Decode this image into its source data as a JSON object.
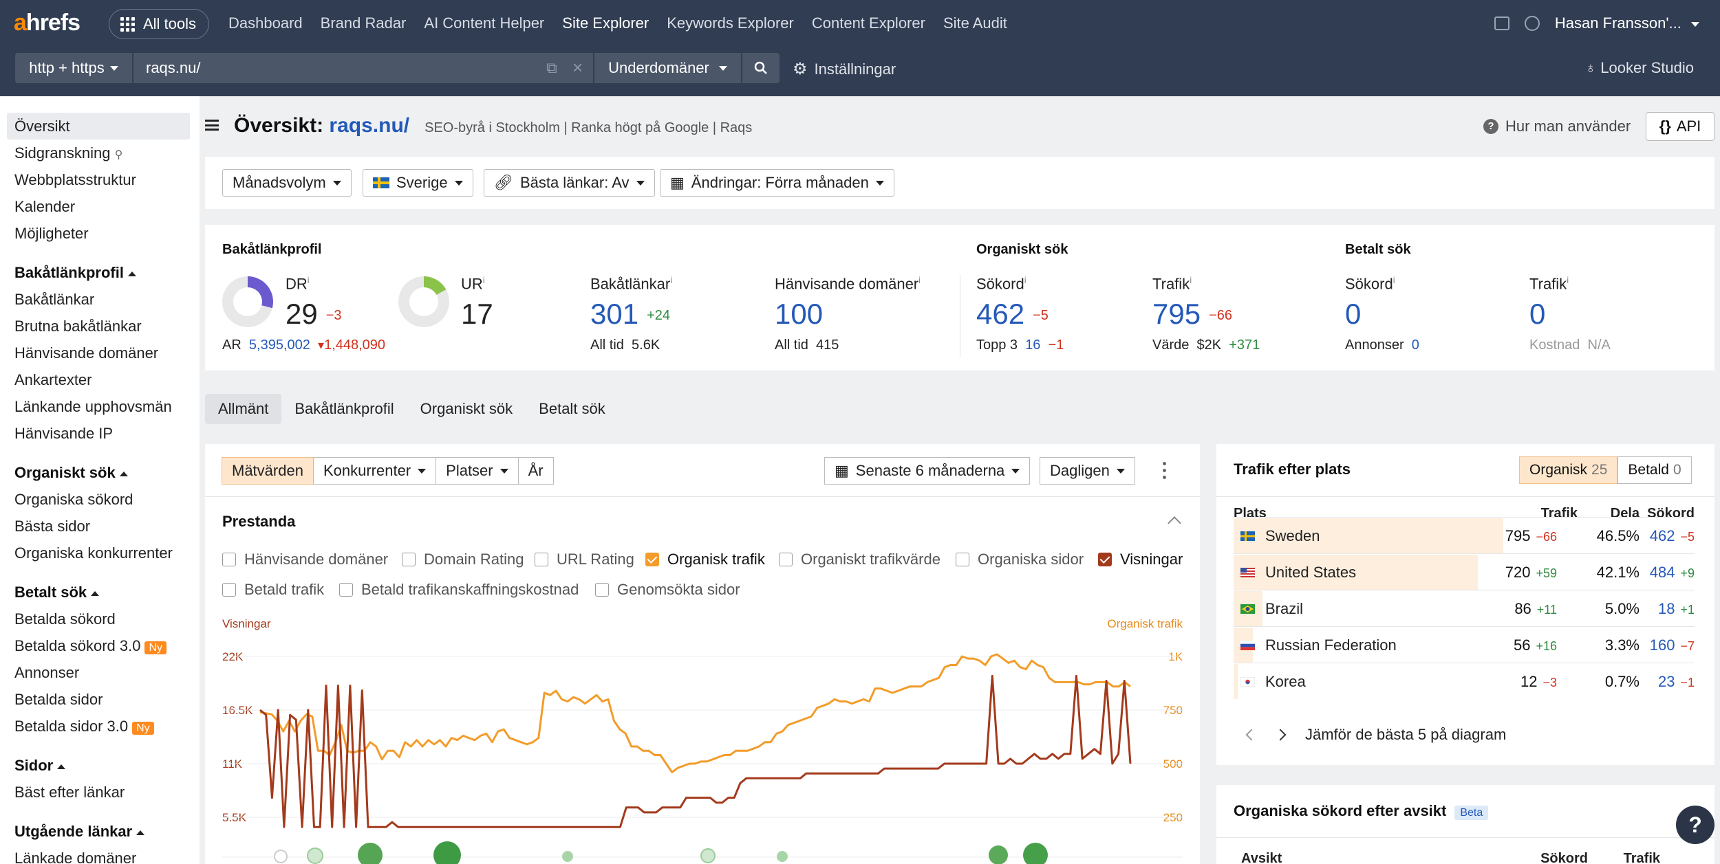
{
  "nav": {
    "logo_a": "a",
    "logo_rest": "hrefs",
    "all_tools": "All tools",
    "menu": [
      "Dashboard",
      "Brand Radar",
      "AI Content Helper",
      "Site Explorer",
      "Keywords Explorer",
      "Content Explorer",
      "Site Audit"
    ],
    "user": "Hasan Fransson'..."
  },
  "search": {
    "protocol": "http + https",
    "url": "raqs.nu/",
    "mode": "Underdomäner",
    "settings": "Inställningar",
    "looker": "Looker Studio"
  },
  "sidebar": {
    "top": [
      "Översikt",
      "Sidgranskning",
      "Webbplatsstruktur",
      "Kalender",
      "Möjligheter"
    ],
    "sections": [
      {
        "title": "Bakåtlänkprofil",
        "items": [
          "Bakåtlänkar",
          "Brutna bakåtlänkar",
          "Hänvisande domäner",
          "Ankartexter",
          "Länkande upphovsmän",
          "Hänvisande IP"
        ]
      },
      {
        "title": "Organiskt sök",
        "items": [
          "Organiska sökord",
          "Bästa sidor",
          "Organiska konkurrenter"
        ]
      },
      {
        "title": "Betalt sök",
        "items": [
          "Betalda sökord",
          "Betalda sökord 3.0",
          "Annonser",
          "Betalda sidor",
          "Betalda sidor 3.0"
        ]
      },
      {
        "title": "Sidor",
        "items": [
          "Bäst efter länkar"
        ]
      },
      {
        "title": "Utgående länkar",
        "items": [
          "Länkade domäner"
        ]
      }
    ],
    "new_badge": "Ny"
  },
  "page": {
    "title_prefix": "Översikt:",
    "title_domain": "raqs.nu/",
    "description": "SEO-byrå i Stockholm | Ranka högt på Google | Raqs",
    "how_to": "Hur man använder",
    "api": "API"
  },
  "filters": {
    "volume": "Månadsvolym",
    "country": "Sverige",
    "best_links": "Bästa länkar: Av",
    "changes": "Ändringar: Förra månaden"
  },
  "metrics": {
    "backlink_profile": "Bakåtlänkprofil",
    "organic_search": "Organiskt sök",
    "paid_search": "Betalt sök",
    "dr": {
      "label": "DR",
      "value": "29",
      "delta": "−3",
      "ar_label": "AR",
      "ar": "5,395,002",
      "ar_delta": "1,448,090",
      "fill": 0.29
    },
    "ur": {
      "label": "UR",
      "value": "17",
      "fill": 0.17
    },
    "backlinks": {
      "label": "Bakåtlänkar",
      "value": "301",
      "delta": "+24",
      "sub_label": "All tid",
      "sub": "5.6K"
    },
    "ref_domains": {
      "label": "Hänvisande domäner",
      "value": "100",
      "sub_label": "All tid",
      "sub": "415"
    },
    "org_keywords": {
      "label": "Sökord",
      "value": "462",
      "delta": "−5",
      "sub_label": "Topp 3",
      "sub": "16",
      "sub_delta": "−1"
    },
    "org_traffic": {
      "label": "Trafik",
      "value": "795",
      "delta": "−66",
      "sub_label": "Värde",
      "sub": "$2K",
      "sub_delta": "+371"
    },
    "paid_keywords": {
      "label": "Sökord",
      "value": "0",
      "sub_label": "Annonser",
      "sub": "0"
    },
    "paid_traffic": {
      "label": "Trafik",
      "value": "0",
      "sub_label": "Kostnad",
      "sub": "N/A"
    },
    "info": "i"
  },
  "tabs": [
    "Allmänt",
    "Bakåtlänkprofil",
    "Organiskt sök",
    "Betalt sök"
  ],
  "chart_toolbar": {
    "metrics": "Mätvärden",
    "competitors": "Konkurrenter",
    "places": "Platser",
    "year": "År",
    "range": "Senaste 6 månaderna",
    "interval": "Dagligen"
  },
  "performance": {
    "title": "Prestanda",
    "checkboxes": [
      {
        "label": "Hänvisande domäner",
        "checked": false
      },
      {
        "label": "Domain Rating",
        "checked": false
      },
      {
        "label": "URL Rating",
        "checked": false
      },
      {
        "label": "Organisk trafik",
        "checked": true
      },
      {
        "label": "Organiskt trafikvärde",
        "checked": false
      },
      {
        "label": "Organiska sidor",
        "checked": false
      },
      {
        "label": "Visningar",
        "checked": true
      },
      {
        "label": "Betald trafik",
        "checked": false
      },
      {
        "label": "Betald trafikanskaffningskostnad",
        "checked": false
      },
      {
        "label": "Genomsökta sidor",
        "checked": false
      }
    ]
  },
  "chart_data": {
    "type": "line",
    "left_axis_label": "Visningar",
    "right_axis_label": "Organisk trafik",
    "left_ticks": [
      "22K",
      "16.5K",
      "11K",
      "5.5K"
    ],
    "right_ticks": [
      "1K",
      "750",
      "500",
      "250"
    ],
    "left_ylim": [
      0,
      22000
    ],
    "right_ylim": [
      0,
      1000
    ],
    "colors": {
      "visningar": "#a33a1c",
      "organisk_trafik": "#f39c2a"
    },
    "series": [
      {
        "name": "Organisk trafik",
        "values": [
          740,
          735,
          730,
          700,
          650,
          700,
          650,
          700,
          730,
          720,
          560,
          560,
          540,
          600,
          680,
          560,
          550,
          560,
          560,
          600,
          580,
          520,
          560,
          560,
          530,
          600,
          580,
          610,
          580,
          610,
          590,
          610,
          580,
          620,
          610,
          630,
          620,
          610,
          630,
          640,
          600,
          650,
          660,
          620,
          610,
          600,
          590,
          600,
          620,
          830,
          820,
          840,
          800,
          790,
          810,
          800,
          780,
          800,
          820,
          790,
          800,
          700,
          660,
          640,
          580,
          580,
          560,
          560,
          540,
          540,
          500,
          460,
          480,
          490,
          500,
          500,
          510,
          510,
          520,
          530,
          540,
          540,
          560,
          560,
          560,
          570,
          580,
          600,
          600,
          640,
          650,
          680,
          690,
          700,
          710,
          720,
          760,
          770,
          780,
          800,
          790,
          790,
          780,
          790,
          800,
          790,
          850,
          850,
          840,
          830,
          840,
          850,
          860,
          860,
          860,
          880,
          890,
          900,
          950,
          960,
          960,
          1000,
          990,
          990,
          980,
          960,
          1000,
          1010,
          990,
          970,
          980,
          950,
          940,
          980,
          960,
          950,
          900,
          880,
          880,
          880,
          880,
          880,
          870,
          870,
          880,
          880,
          880,
          860,
          860,
          880,
          860
        ]
      },
      {
        "name": "Visningar",
        "values": [
          16500,
          16000,
          7500,
          16500,
          4500,
          16000,
          15500,
          4500,
          16500,
          4500,
          4500,
          19000,
          4500,
          19000,
          4500,
          19000,
          4500,
          18500,
          4500,
          4500,
          4500,
          4500,
          5000,
          4500,
          4500,
          4500,
          4500,
          4500,
          4500,
          4500,
          4500,
          4500,
          4500,
          4500,
          4500,
          4500,
          4500,
          4500,
          4500,
          4500,
          4500,
          4500,
          4500,
          4500,
          4500,
          4500,
          4500,
          4500,
          4500,
          4500,
          4500,
          4500,
          4500,
          4500,
          4500,
          4500,
          4500,
          4500,
          4500,
          4500,
          4500,
          6500,
          6500,
          6500,
          6000,
          6000,
          6000,
          6500,
          6500,
          6500,
          6500,
          7500,
          7500,
          7500,
          7500,
          7500,
          7000,
          7000,
          7500,
          7500,
          9000,
          9500,
          9500,
          9500,
          9500,
          9500,
          9500,
          9500,
          9500,
          9500,
          9500,
          10000,
          10000,
          10000,
          10000,
          10000,
          10000,
          10000,
          10000,
          10000,
          10000,
          10000,
          10000,
          10000,
          10500,
          10500,
          10500,
          10500,
          10500,
          10500,
          10500,
          10500,
          10500,
          10500,
          11000,
          11000,
          11000,
          11000,
          11000,
          11000,
          11000,
          11000,
          20000,
          11000,
          11000,
          11500,
          11000,
          11000,
          11500,
          12000,
          11500,
          11500,
          12000,
          11500,
          12000,
          12000,
          20000,
          11500,
          12000,
          12500,
          12000,
          19500,
          11000,
          12000,
          19500,
          11000
        ]
      }
    ]
  },
  "traffic_by_location": {
    "title": "Trafik efter plats",
    "organic_label": "Organisk",
    "organic_count": "25",
    "paid_label": "Betald",
    "paid_count": "0",
    "headers": [
      "Plats",
      "Trafik",
      "Dela",
      "Sökord"
    ],
    "rows": [
      {
        "country": "Sweden",
        "traffic": "795",
        "traffic_delta": "−66",
        "share": "46.5%",
        "share_value": 0.465,
        "keywords": "462",
        "kw_delta": "−5"
      },
      {
        "country": "United States",
        "traffic": "720",
        "traffic_delta": "+59",
        "share": "42.1%",
        "share_value": 0.421,
        "keywords": "484",
        "kw_delta": "+9"
      },
      {
        "country": "Brazil",
        "traffic": "86",
        "traffic_delta": "+11",
        "share": "5.0%",
        "share_value": 0.05,
        "keywords": "18",
        "kw_delta": "+1"
      },
      {
        "country": "Russian Federation",
        "traffic": "56",
        "traffic_delta": "+16",
        "share": "3.3%",
        "share_value": 0.033,
        "keywords": "160",
        "kw_delta": "−7"
      },
      {
        "country": "Korea",
        "traffic": "12",
        "traffic_delta": "−3",
        "share": "0.7%",
        "share_value": 0.007,
        "keywords": "23",
        "kw_delta": "−1"
      }
    ],
    "compare": "Jämför de bästa 5 på diagram"
  },
  "intent": {
    "title": "Organiska sökord efter avsikt",
    "beta": "Beta",
    "headers": [
      "Avsikt",
      "Sökord",
      "Trafik"
    ]
  },
  "help": "?"
}
